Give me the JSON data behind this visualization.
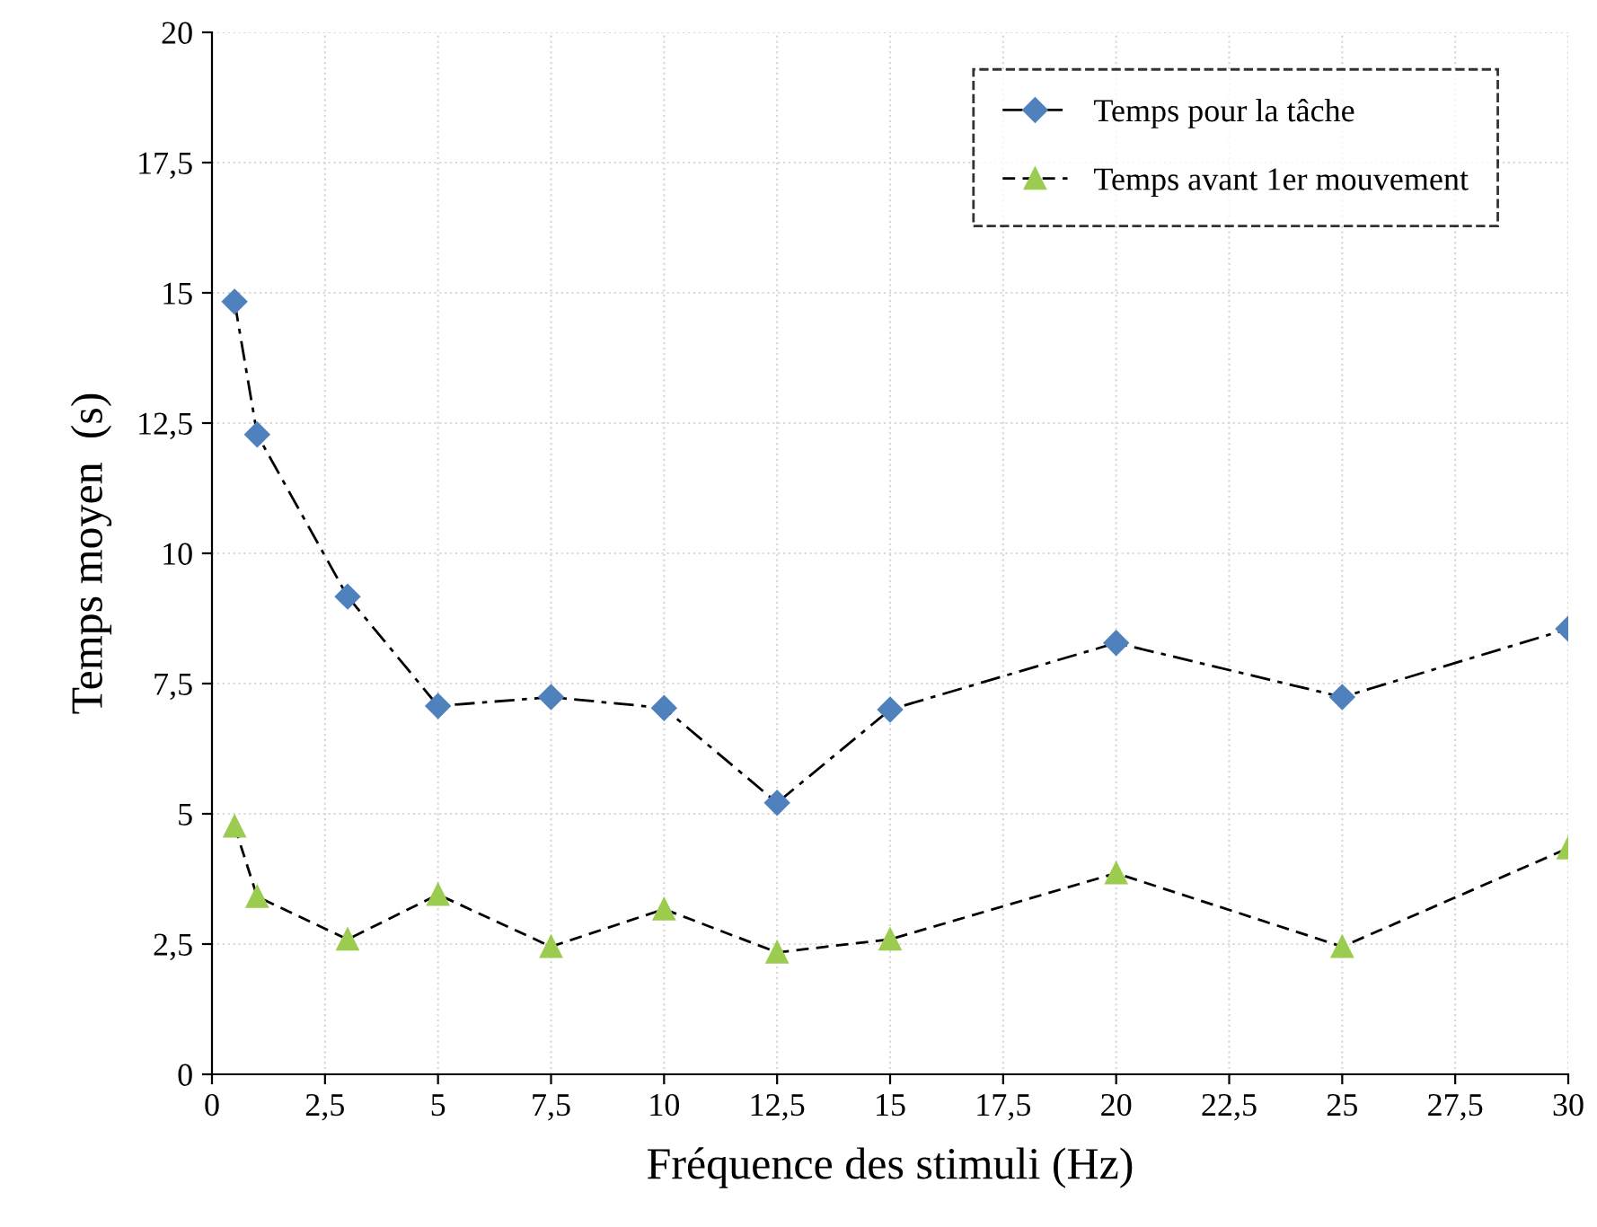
{
  "chart_data": {
    "type": "line",
    "xlabel": "Fréquence des stimuli (Hz)",
    "ylabel": "Temps moyen  (s)",
    "xlim": [
      0,
      30
    ],
    "xticks": [
      0,
      {
        "value": 2.5,
        "label": "2,5"
      },
      5,
      {
        "value": 7.5,
        "label": "7,5"
      },
      10,
      {
        "value": 12.5,
        "label": "12,5"
      },
      15,
      {
        "value": 17.5,
        "label": "17,5"
      },
      20,
      {
        "value": 22.5,
        "label": "22,5"
      },
      25,
      {
        "value": 27.5,
        "label": "27,5"
      },
      30
    ],
    "ylim": [
      0,
      20
    ],
    "yticks": [
      0,
      {
        "value": 2.5,
        "label": "2,5"
      },
      5,
      {
        "value": 7.5,
        "label": "7,5"
      },
      10,
      {
        "value": 12.5,
        "label": "12,5"
      },
      15,
      {
        "value": 17.5,
        "label": "17,5"
      },
      20
    ],
    "grid": true,
    "legend": "top right",
    "x": [
      0.5,
      1,
      3,
      5,
      7.5,
      10,
      12.5,
      15,
      20,
      25,
      30
    ],
    "series": [
      {
        "name": "Temps pour la tâche",
        "color": "#4f81bd",
        "marker": "diamond",
        "line_style": "dashdot",
        "values": [
          14.83,
          12.28,
          9.17,
          7.07,
          7.24,
          7.03,
          5.21,
          7.0,
          8.28,
          7.24,
          8.55
        ]
      },
      {
        "name": "Temps avant 1er mouvement",
        "color": "#9bcc50",
        "marker": "triangle",
        "line_style": "dashed",
        "values": [
          4.76,
          3.41,
          2.59,
          3.45,
          2.45,
          3.17,
          2.34,
          2.59,
          3.86,
          2.45,
          4.34
        ]
      }
    ]
  }
}
